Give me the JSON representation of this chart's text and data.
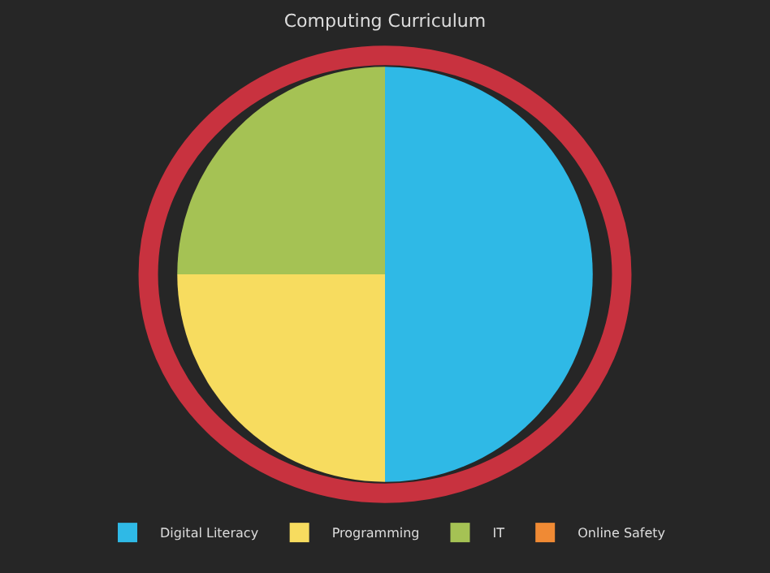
{
  "chart_data": {
    "type": "pie",
    "title": "Computing Curriculum",
    "categories": [
      "Digital Literacy",
      "Programming",
      "IT",
      "Online Safety"
    ],
    "values": [
      50,
      25,
      25,
      0
    ],
    "colors": [
      "#2fb9e6",
      "#f7dc5f",
      "#a5c254",
      "#f08a34"
    ],
    "legend": "bottom"
  }
}
